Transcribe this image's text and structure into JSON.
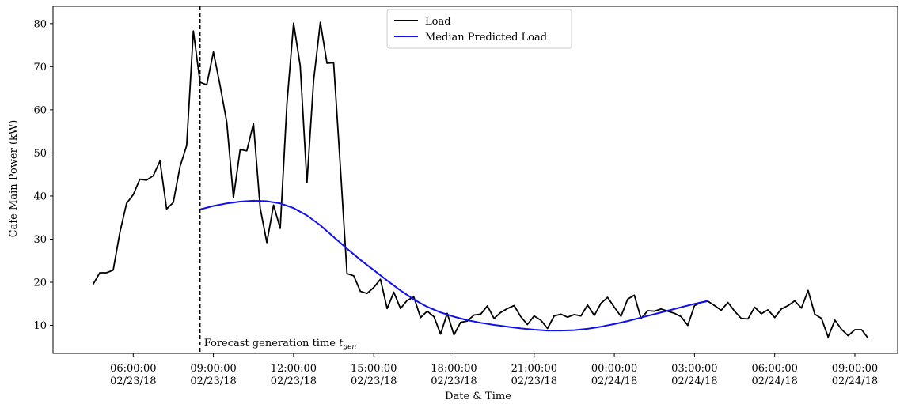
{
  "chart_data": {
    "type": "line",
    "title": "",
    "xlabel": "Date & Time",
    "ylabel": "Cafe Main Power (kW)",
    "xlim": [
      3.0,
      34.6
    ],
    "ylim": [
      3.5,
      84.0
    ],
    "x_units": "hours since 00:00 02/23/18",
    "yticks": [
      10,
      20,
      30,
      40,
      50,
      60,
      70,
      80
    ],
    "xticks": [
      {
        "x": 6,
        "time": "06:00:00",
        "date": "02/23/18"
      },
      {
        "x": 9,
        "time": "09:00:00",
        "date": "02/23/18"
      },
      {
        "x": 12,
        "time": "12:00:00",
        "date": "02/23/18"
      },
      {
        "x": 15,
        "time": "15:00:00",
        "date": "02/23/18"
      },
      {
        "x": 18,
        "time": "18:00:00",
        "date": "02/23/18"
      },
      {
        "x": 21,
        "time": "21:00:00",
        "date": "02/23/18"
      },
      {
        "x": 24,
        "time": "00:00:00",
        "date": "02/24/18"
      },
      {
        "x": 27,
        "time": "03:00:00",
        "date": "02/24/18"
      },
      {
        "x": 30,
        "time": "06:00:00",
        "date": "02/24/18"
      },
      {
        "x": 33,
        "time": "09:00:00",
        "date": "02/24/18"
      }
    ],
    "legend": {
      "placement": "upper center"
    },
    "annotation": {
      "x": 8.5,
      "text": "Forecast generation time ",
      "math": "t",
      "sub": "gen"
    },
    "grid": false,
    "series": [
      {
        "name": "Load",
        "color": "#000000",
        "x": [
          4.5,
          4.75,
          5.0,
          5.25,
          5.5,
          5.75,
          6.0,
          6.25,
          6.5,
          6.75,
          7.0,
          7.25,
          7.5,
          7.75,
          8.0,
          8.25,
          8.5,
          8.75,
          9.0,
          9.25,
          9.5,
          9.75,
          10.0,
          10.25,
          10.5,
          10.75,
          11.0,
          11.25,
          11.5,
          11.75,
          12.0,
          12.25,
          12.5,
          12.75,
          13.0,
          13.25,
          13.5,
          13.75,
          14.0,
          14.25,
          14.5,
          14.75,
          15.0,
          15.25,
          15.5,
          15.75,
          16.0,
          16.25,
          16.5,
          16.75,
          17.0,
          17.25,
          17.5,
          17.75,
          18.0,
          18.25,
          18.5,
          18.75,
          19.0,
          19.25,
          19.5,
          19.75,
          20.0,
          20.25,
          20.5,
          20.75,
          21.0,
          21.25,
          21.5,
          21.75,
          22.0,
          22.25,
          22.5,
          22.75,
          23.0,
          23.25,
          23.5,
          23.75,
          24.0,
          24.25,
          24.5,
          24.75,
          25.0,
          25.25,
          25.5,
          25.75,
          26.0,
          26.25,
          26.5,
          26.75,
          27.0,
          27.25,
          27.5,
          27.75,
          28.0,
          28.25,
          28.5,
          28.75,
          29.0,
          29.25,
          29.5,
          29.75,
          30.0,
          30.25,
          30.5,
          30.75,
          31.0,
          31.25,
          31.5,
          31.75,
          32.0,
          32.25,
          32.5,
          32.75,
          33.0,
          33.25,
          33.5
        ],
        "values": [
          19.5,
          22.2,
          22.2,
          22.8,
          31.5,
          38.3,
          40.3,
          43.9,
          43.7,
          44.7,
          48.1,
          37.0,
          38.5,
          46.8,
          51.7,
          78.3,
          66.4,
          65.8,
          73.4,
          65.7,
          57.1,
          39.6,
          50.8,
          50.5,
          56.8,
          37.2,
          29.2,
          37.9,
          32.5,
          61.4,
          80.1,
          70.2,
          43.1,
          66.8,
          80.3,
          70.8,
          70.9,
          46.7,
          22.0,
          21.5,
          17.9,
          17.4,
          18.8,
          20.7,
          13.9,
          17.7,
          13.9,
          15.8,
          16.6,
          11.8,
          13.3,
          12.0,
          8.0,
          12.8,
          7.8,
          10.7,
          11.0,
          12.4,
          12.6,
          14.5,
          11.6,
          13.0,
          13.9,
          14.6,
          12.0,
          10.2,
          12.2,
          11.2,
          9.3,
          12.2,
          12.6,
          11.9,
          12.5,
          12.2,
          14.7,
          12.3,
          15.1,
          16.5,
          14.2,
          12.1,
          16.1,
          17.0,
          11.6,
          13.4,
          13.3,
          13.8,
          13.3,
          12.8,
          12.0,
          10.0,
          14.6,
          15.3,
          15.6,
          14.6,
          13.5,
          15.3,
          13.3,
          11.6,
          11.5,
          14.2,
          12.7,
          13.6,
          11.8,
          13.8,
          14.6,
          15.7,
          14.0,
          18.1,
          12.6,
          11.6,
          7.3,
          11.2,
          9.1,
          7.6,
          9.0,
          9.0,
          7.0
        ]
      },
      {
        "name": "Median Predicted Load",
        "color": "#1010ee",
        "x": [
          8.5,
          9.0,
          9.5,
          10.0,
          10.5,
          11.0,
          11.5,
          12.0,
          12.5,
          13.0,
          13.5,
          14.0,
          14.5,
          15.0,
          15.5,
          16.0,
          16.5,
          17.0,
          17.5,
          18.0,
          18.5,
          19.0,
          19.5,
          20.0,
          20.5,
          21.0,
          21.5,
          22.0,
          22.5,
          23.0,
          23.5,
          24.0,
          24.5,
          25.0,
          25.5,
          26.0,
          26.5,
          27.0,
          27.5
        ],
        "values": [
          36.9,
          37.7,
          38.3,
          38.7,
          38.9,
          38.8,
          38.3,
          37.2,
          35.5,
          33.2,
          30.5,
          27.8,
          25.2,
          22.8,
          20.4,
          18.1,
          16.0,
          14.3,
          13.0,
          12.0,
          11.2,
          10.6,
          10.1,
          9.7,
          9.3,
          9.0,
          8.8,
          8.8,
          8.9,
          9.2,
          9.7,
          10.3,
          11.0,
          11.8,
          12.6,
          13.4,
          14.2,
          15.0,
          15.7
        ]
      }
    ]
  }
}
